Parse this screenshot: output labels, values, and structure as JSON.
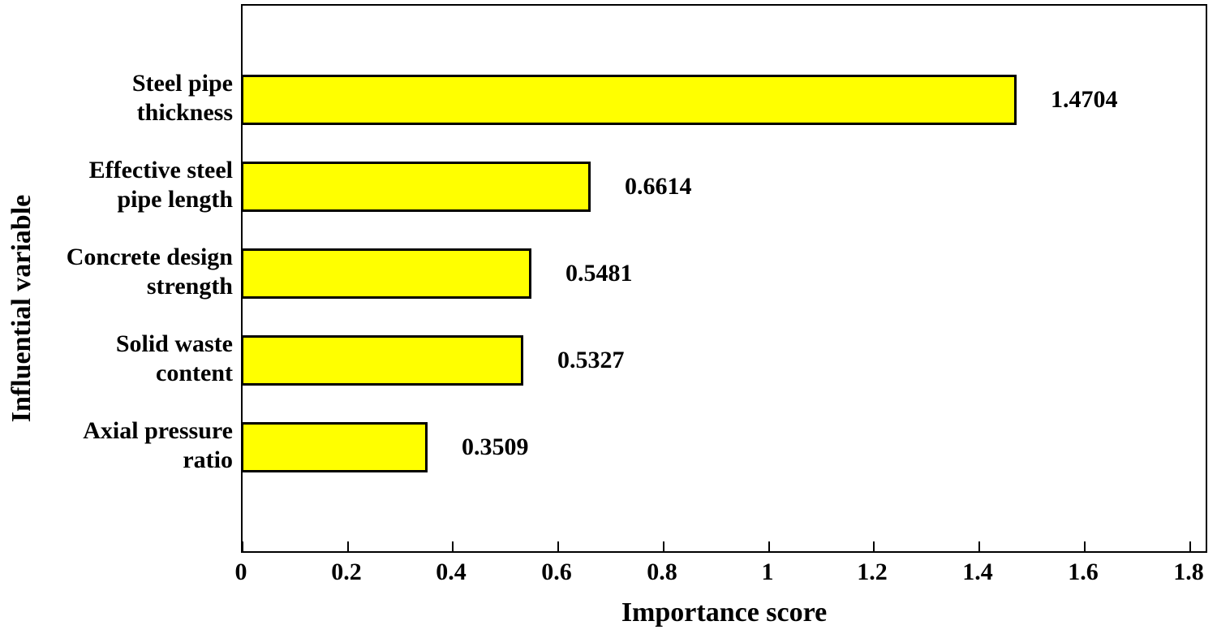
{
  "chart_data": {
    "type": "bar",
    "orientation": "horizontal",
    "title": "",
    "xlabel": "Importance score",
    "ylabel": "Influential variable",
    "categories": [
      "Steel pipe thickness",
      "Effective steel pipe length",
      "Concrete design strength",
      "Solid waste content",
      "Axial pressure ratio"
    ],
    "category_lines": [
      [
        "Steel pipe",
        "thickness"
      ],
      [
        "Effective steel",
        "pipe length"
      ],
      [
        "Concrete design",
        "strength"
      ],
      [
        "Solid waste",
        "content"
      ],
      [
        "Axial pressure",
        "ratio"
      ]
    ],
    "values": [
      1.4704,
      0.6614,
      0.5481,
      0.5327,
      0.3509
    ],
    "value_labels": [
      "1.4704",
      "0.6614",
      "0.5481",
      "0.5327",
      "0.3509"
    ],
    "xlim": [
      0,
      1.8
    ],
    "x_ticks": [
      "0",
      "0.2",
      "0.4",
      "0.6",
      "0.8",
      "1",
      "1.2",
      "1.4",
      "1.6",
      "1.8"
    ],
    "grid": false,
    "legend": "none",
    "bar_color": "#ffff00",
    "bar_border_color": "#000000",
    "text_color": "#000000",
    "background_color": "#ffffff"
  }
}
